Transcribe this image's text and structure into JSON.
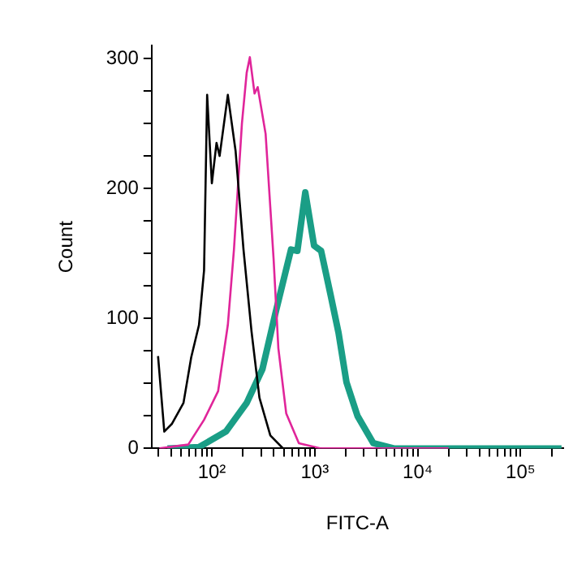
{
  "chart_data": {
    "type": "line",
    "xlabel": "FITC-A",
    "ylabel": "Count",
    "log": "x",
    "grid": false,
    "legend": false,
    "marker": "none",
    "line_style": "solid",
    "xlim": [
      26,
      260000
    ],
    "ylim": [
      0,
      310
    ],
    "xticks": [
      {
        "value": 30,
        "label": null
      },
      {
        "value": 40,
        "label": null
      },
      {
        "value": 50,
        "label": null
      },
      {
        "value": 60,
        "label": null
      },
      {
        "value": 70,
        "label": null
      },
      {
        "value": 80,
        "label": null
      },
      {
        "value": 90,
        "label": null
      },
      {
        "value": 100,
        "label": "10²"
      },
      {
        "value": 200,
        "label": null
      },
      {
        "value": 300,
        "label": null
      },
      {
        "value": 400,
        "label": null
      },
      {
        "value": 500,
        "label": null
      },
      {
        "value": 600,
        "label": null
      },
      {
        "value": 700,
        "label": null
      },
      {
        "value": 800,
        "label": null
      },
      {
        "value": 900,
        "label": null
      },
      {
        "value": 1000,
        "label": "10³"
      },
      {
        "value": 2000,
        "label": null
      },
      {
        "value": 3000,
        "label": null
      },
      {
        "value": 4000,
        "label": null
      },
      {
        "value": 5000,
        "label": null
      },
      {
        "value": 6000,
        "label": null
      },
      {
        "value": 7000,
        "label": null
      },
      {
        "value": 8000,
        "label": null
      },
      {
        "value": 9000,
        "label": null
      },
      {
        "value": 10000,
        "label": "10⁴"
      },
      {
        "value": 20000,
        "label": null
      },
      {
        "value": 30000,
        "label": null
      },
      {
        "value": 40000,
        "label": null
      },
      {
        "value": 50000,
        "label": null
      },
      {
        "value": 60000,
        "label": null
      },
      {
        "value": 70000,
        "label": null
      },
      {
        "value": 80000,
        "label": null
      },
      {
        "value": 90000,
        "label": null
      },
      {
        "value": 100000,
        "label": "10⁵"
      },
      {
        "value": 200000,
        "label": null
      }
    ],
    "yticks": [
      0,
      {
        "value": 25,
        "label": null
      },
      {
        "value": 50,
        "label": null
      },
      {
        "value": 75,
        "label": null
      },
      100,
      {
        "value": 125,
        "label": null
      },
      {
        "value": 150,
        "label": null
      },
      {
        "value": 175,
        "label": null
      },
      200,
      {
        "value": 225,
        "label": null
      },
      {
        "value": 250,
        "label": null
      },
      {
        "value": 275,
        "label": null
      },
      300
    ],
    "series": [
      {
        "color": "#000000",
        "x": [
          30,
          34.5,
          41,
          53,
          63,
          75,
          84,
          90,
          100,
          111,
          119,
          143,
          170,
          203,
          243,
          290,
          370,
          492,
          1000
        ],
        "values": [
          71,
          13,
          19,
          35,
          70,
          95,
          137,
          272,
          204,
          235,
          225,
          272,
          229,
          153,
          90,
          39,
          10,
          0,
          0
        ]
      },
      {
        "color": "#e0259a",
        "x": [
          31,
          59,
          84,
          115,
          143,
          164,
          196,
          218,
          234,
          260,
          279,
          333,
          398,
          443,
          528,
          701,
          1150,
          20000
        ],
        "values": [
          0,
          3,
          22,
          44,
          95,
          153,
          250,
          289,
          301,
          273,
          278,
          242,
          146,
          77,
          27,
          4,
          0,
          0
        ]
      },
      {
        "color": "#1a9e86",
        "x": [
          37,
          75,
          137,
          218,
          310,
          412,
          588,
          678,
          809,
          985,
          1153,
          1426,
          1702,
          2032,
          2602,
          3710,
          5875,
          250000
        ],
        "values": [
          0,
          1,
          13,
          35,
          61,
          103,
          153,
          152,
          197,
          156,
          152,
          118,
          89,
          51,
          25,
          4,
          0,
          0
        ]
      }
    ]
  }
}
